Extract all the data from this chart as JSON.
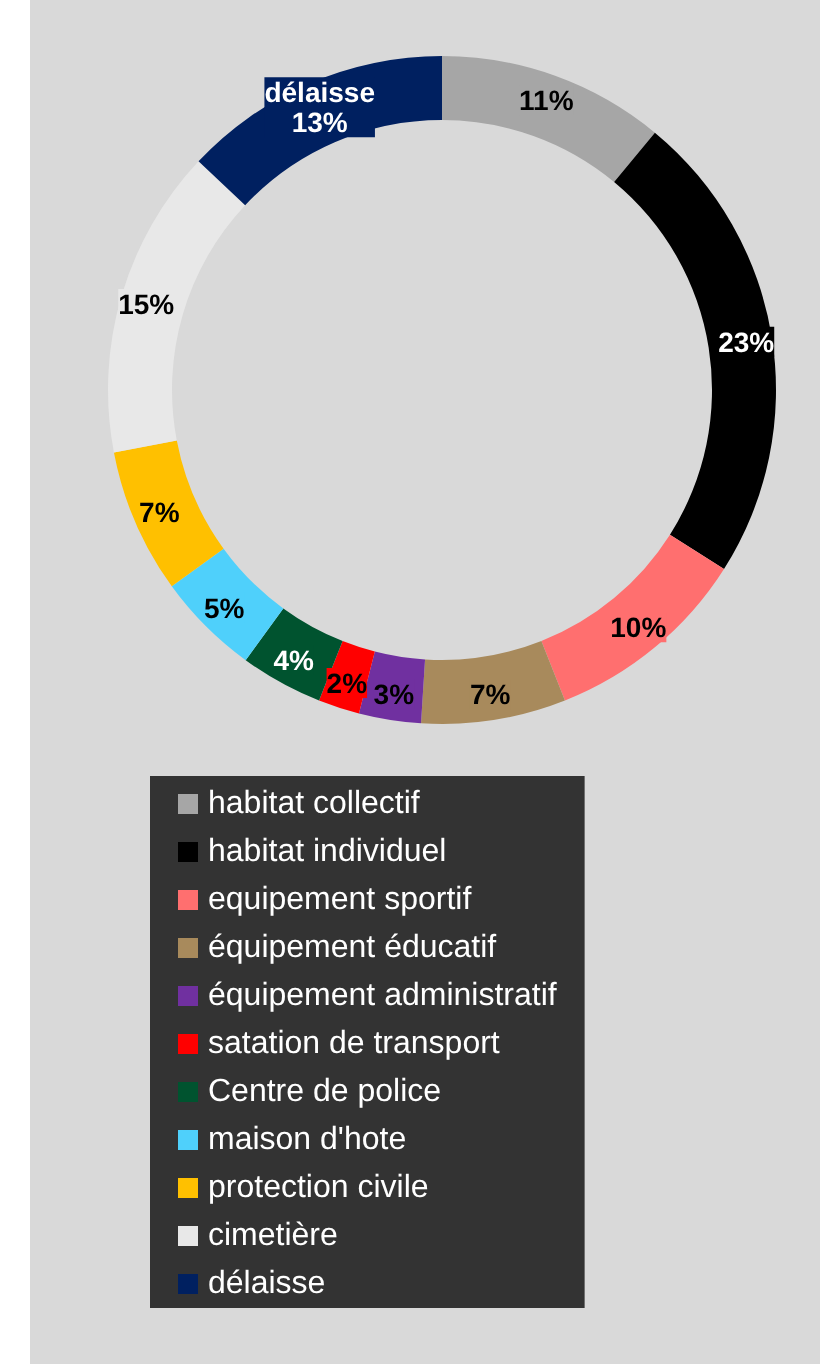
{
  "chart_data": {
    "type": "donut",
    "categories": [
      "habitat collectif",
      "habitat individuel",
      "equipement sportif",
      "équipement éducatif",
      "équipement administratif",
      "satation de transport",
      "Centre de police",
      "maison d'hote",
      "protection civile",
      "cimetière",
      "délaisse"
    ],
    "values": [
      11,
      23,
      10,
      7,
      3,
      2,
      4,
      5,
      7,
      15,
      13
    ],
    "value_labels": [
      "11%",
      "23%",
      "10%",
      "7%",
      "3%",
      "2%",
      "4%",
      "5%",
      "7%",
      "15%",
      "délaisse 13%"
    ],
    "colors": [
      "#a6a6a6",
      "#000000",
      "#ff6f6f",
      "#a88a5c",
      "#7030a0",
      "#ff0000",
      "#00532f",
      "#4fd0fb",
      "#ffc000",
      "#e8e8e8",
      "#002060"
    ],
    "legend": "bottom"
  }
}
